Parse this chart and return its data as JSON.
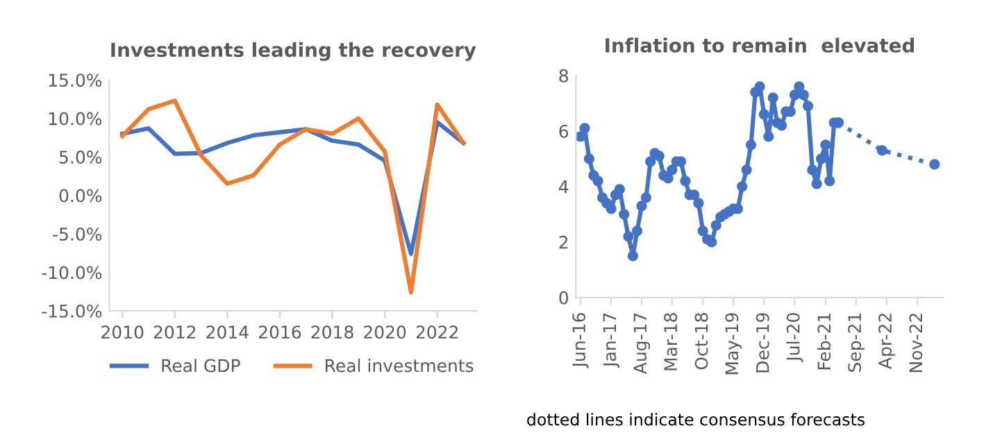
{
  "chart_data": [
    {
      "type": "line",
      "title": "Investments leading the recovery",
      "categories": [
        "2010",
        null,
        "2012",
        null,
        "2014",
        null,
        "2016",
        null,
        "2018",
        null,
        "2020",
        null,
        "2022",
        null
      ],
      "series": [
        {
          "name": "Real GDP",
          "color": "#4472c4",
          "values": [
            8.0,
            8.7,
            5.4,
            5.5,
            6.8,
            7.8,
            8.2,
            8.6,
            7.1,
            6.6,
            4.5,
            -7.6,
            9.5,
            6.8
          ]
        },
        {
          "name": "Real investments",
          "color": "#ed7d31",
          "values": [
            7.7,
            11.2,
            12.3,
            5.2,
            1.5,
            2.6,
            6.6,
            8.6,
            8.0,
            10.0,
            5.7,
            -12.6,
            11.8,
            6.8
          ]
        }
      ],
      "ylim": [
        -15,
        15
      ],
      "yticks": [
        {
          "value": -15,
          "label": "-15.0%"
        },
        {
          "value": -10,
          "label": "-10.0%"
        },
        {
          "value": -5,
          "label": "-5.0%"
        },
        {
          "value": 0,
          "label": "0.0%"
        },
        {
          "value": 5,
          "label": "5.0%"
        },
        {
          "value": 10,
          "label": "10.0%"
        },
        {
          "value": 15,
          "label": "15.0%"
        }
      ],
      "grid": false,
      "legend": "bottom",
      "marker": "none",
      "line_style": "solid"
    },
    {
      "type": "line",
      "title": "Inflation to remain  elevated",
      "x": [
        "2016-06",
        "2016-07",
        "2016-08",
        "2016-09",
        "2016-10",
        "2016-11",
        "2016-12",
        "2017-01",
        "2017-02",
        "2017-03",
        "2017-04",
        "2017-05",
        "2017-06",
        "2017-07",
        "2017-08",
        "2017-09",
        "2017-10",
        "2017-11",
        "2017-12",
        "2018-01",
        "2018-02",
        "2018-03",
        "2018-04",
        "2018-05",
        "2018-06",
        "2018-07",
        "2018-08",
        "2018-09",
        "2018-10",
        "2018-11",
        "2018-12",
        "2019-01",
        "2019-02",
        "2019-03",
        "2019-04",
        "2019-05",
        "2019-06",
        "2019-07",
        "2019-08",
        "2019-09",
        "2019-10",
        "2019-11",
        "2019-12",
        "2020-01",
        "2020-02",
        "2020-03",
        "2020-04",
        "2020-05",
        "2020-06",
        "2020-07",
        "2020-08",
        "2020-09",
        "2020-10",
        "2020-11",
        "2020-12",
        "2021-01",
        "2021-02",
        "2021-03",
        "2021-04",
        "2021-05"
      ],
      "series": [
        {
          "color": "#4472c4",
          "line_style": "solid",
          "values": [
            5.8,
            6.1,
            5.0,
            4.4,
            4.2,
            3.6,
            3.4,
            3.2,
            3.7,
            3.9,
            3.0,
            2.2,
            1.5,
            2.4,
            3.3,
            3.6,
            4.9,
            5.2,
            5.1,
            4.4,
            4.3,
            4.6,
            4.9,
            4.9,
            4.2,
            3.7,
            3.7,
            3.4,
            2.4,
            2.1,
            2.0,
            2.6,
            2.9,
            3.0,
            3.1,
            3.2,
            3.2,
            4.0,
            4.6,
            5.5,
            7.4,
            7.6,
            6.6,
            5.8,
            7.2,
            6.3,
            6.2,
            6.7,
            6.7,
            7.3,
            7.6,
            7.3,
            6.9,
            4.6,
            4.1,
            5.0,
            5.5,
            4.2,
            6.3,
            6.3
          ]
        },
        {
          "color": "#4472c4",
          "line_style": "dotted",
          "x": [
            "2021-05",
            "2022-03",
            "2023-03"
          ],
          "values": [
            6.3,
            5.3,
            4.8
          ]
        }
      ],
      "xlim": [
        "2016-05",
        "2023-05"
      ],
      "xticks": [
        {
          "value": "2016-06",
          "label": "Jun-16"
        },
        {
          "value": "2017-01",
          "label": "Jan-17"
        },
        {
          "value": "2017-08",
          "label": "Aug-17"
        },
        {
          "value": "2018-03",
          "label": "Mar-18"
        },
        {
          "value": "2018-10",
          "label": "Oct-18"
        },
        {
          "value": "2019-05",
          "label": "May-19"
        },
        {
          "value": "2019-12",
          "label": "Dec-19"
        },
        {
          "value": "2020-07",
          "label": "Jul-20"
        },
        {
          "value": "2021-02",
          "label": "Feb-21"
        },
        {
          "value": "2021-09",
          "label": "Sep-21"
        },
        {
          "value": "2022-04",
          "label": "Apr-22"
        },
        {
          "value": "2022-11",
          "label": "Nov-22"
        }
      ],
      "ylim": [
        0,
        8
      ],
      "yticks": [
        0,
        2,
        4,
        6,
        8
      ],
      "grid": false,
      "legend": false,
      "marker": "circle",
      "annotations": [
        "dotted lines indicate consensus forecasts"
      ]
    }
  ]
}
